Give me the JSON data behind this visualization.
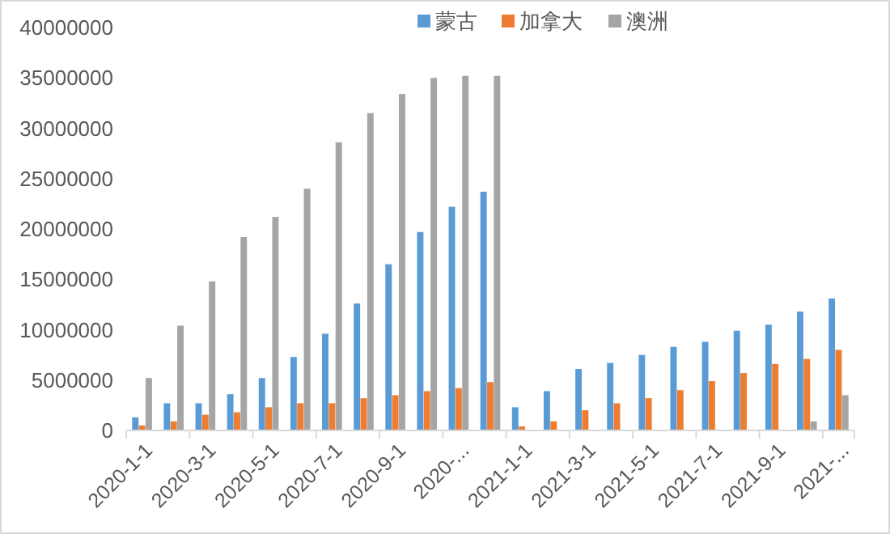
{
  "chart_data": {
    "type": "bar",
    "categories": [
      "2020-1-1",
      null,
      "2020-3-1",
      null,
      "2020-5-1",
      null,
      "2020-7-1",
      null,
      "2020-9-1",
      null,
      "2020-...",
      null,
      "2021-1-1",
      null,
      "2021-3-1",
      null,
      "2021-5-1",
      null,
      "2021-7-1",
      null,
      "2021-9-1",
      null,
      "2021-..."
    ],
    "series": [
      {
        "name": "蒙古",
        "color": "#5b9bd5",
        "values": [
          1300000,
          2700000,
          2700000,
          3600000,
          5200000,
          7300000,
          9600000,
          12600000,
          16500000,
          19700000,
          22200000,
          23700000,
          2300000,
          3900000,
          6100000,
          6700000,
          7500000,
          8300000,
          8800000,
          9900000,
          10500000,
          11800000,
          13100000
        ]
      },
      {
        "name": "加拿大",
        "color": "#ed7d31",
        "values": [
          500000,
          900000,
          1550000,
          1800000,
          2300000,
          2700000,
          2700000,
          3200000,
          3500000,
          3900000,
          4200000,
          4800000,
          400000,
          900000,
          2000000,
          2700000,
          3200000,
          4000000,
          4900000,
          5700000,
          6600000,
          7100000,
          8000000
        ]
      },
      {
        "name": "澳洲",
        "color": "#a5a5a5",
        "values": [
          5200000,
          10400000,
          14800000,
          19200000,
          21200000,
          24000000,
          28600000,
          31500000,
          33400000,
          35000000,
          35200000,
          35200000,
          null,
          null,
          null,
          null,
          null,
          null,
          null,
          null,
          null,
          900000,
          3500000
        ]
      }
    ],
    "ylim": [
      0,
      40000000
    ],
    "yticks": [
      0,
      5000000,
      10000000,
      15000000,
      20000000,
      25000000,
      30000000,
      35000000,
      40000000
    ],
    "grid": false,
    "legend": "top right"
  }
}
